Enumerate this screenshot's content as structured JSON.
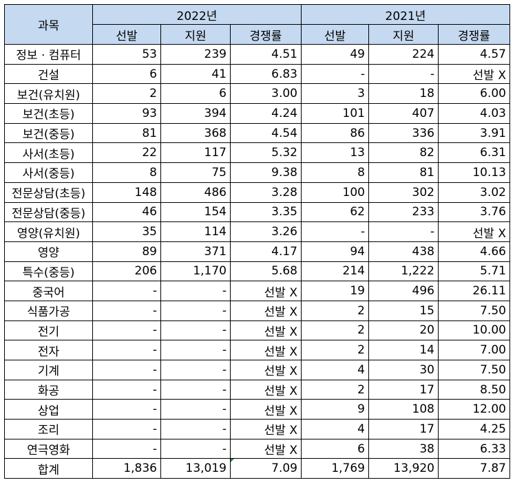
{
  "header": {
    "subject_label": "과목",
    "year_2022": "2022년",
    "year_2021": "2021년",
    "sub_2022": [
      "선발",
      "지원",
      "경쟁률"
    ],
    "sub_2021": [
      "선발",
      "지원",
      "경쟁률"
    ]
  },
  "rows": [
    {
      "subject": "정보 · 컴퓨터",
      "y2022": [
        "53",
        "239",
        "4.51"
      ],
      "y2021": [
        "49",
        "224",
        "4.57"
      ]
    },
    {
      "subject": "건설",
      "y2022": [
        "6",
        "41",
        "6.83"
      ],
      "y2021": [
        "-",
        "-",
        "선발 X"
      ]
    },
    {
      "subject": "보건(유치원)",
      "y2022": [
        "2",
        "6",
        "3.00"
      ],
      "y2021": [
        "3",
        "18",
        "6.00"
      ]
    },
    {
      "subject": "보건(초등)",
      "y2022": [
        "93",
        "394",
        "4.24"
      ],
      "y2021": [
        "101",
        "407",
        "4.03"
      ]
    },
    {
      "subject": "보건(중등)",
      "y2022": [
        "81",
        "368",
        "4.54"
      ],
      "y2021": [
        "86",
        "336",
        "3.91"
      ]
    },
    {
      "subject": "사서(초등)",
      "y2022": [
        "22",
        "117",
        "5.32"
      ],
      "y2021": [
        "13",
        "82",
        "6.31"
      ]
    },
    {
      "subject": "사서(중등)",
      "y2022": [
        "8",
        "75",
        "9.38"
      ],
      "y2021": [
        "8",
        "81",
        "10.13"
      ]
    },
    {
      "subject": "전문상담(초등)",
      "y2022": [
        "148",
        "486",
        "3.28"
      ],
      "y2021": [
        "100",
        "302",
        "3.02"
      ]
    },
    {
      "subject": "전문상담(중등)",
      "y2022": [
        "46",
        "154",
        "3.35"
      ],
      "y2021": [
        "62",
        "233",
        "3.76"
      ]
    },
    {
      "subject": "영양(유치원)",
      "y2022": [
        "35",
        "114",
        "3.26"
      ],
      "y2021": [
        "-",
        "-",
        "선발 X"
      ]
    },
    {
      "subject": "영양",
      "y2022": [
        "89",
        "371",
        "4.17"
      ],
      "y2021": [
        "94",
        "438",
        "4.66"
      ]
    },
    {
      "subject": "특수(중등)",
      "y2022": [
        "206",
        "1,170",
        "5.68"
      ],
      "y2021": [
        "214",
        "1,222",
        "5.71"
      ]
    },
    {
      "subject": "중국어",
      "y2022": [
        "-",
        "-",
        "선발 X"
      ],
      "y2021": [
        "19",
        "496",
        "26.11"
      ]
    },
    {
      "subject": "식품가공",
      "y2022": [
        "-",
        "-",
        "선발 X"
      ],
      "y2021": [
        "2",
        "15",
        "7.50"
      ]
    },
    {
      "subject": "전기",
      "y2022": [
        "-",
        "-",
        "선발 X"
      ],
      "y2021": [
        "2",
        "20",
        "10.00"
      ]
    },
    {
      "subject": "전자",
      "y2022": [
        "-",
        "-",
        "선발 X"
      ],
      "y2021": [
        "2",
        "14",
        "7.00"
      ]
    },
    {
      "subject": "기계",
      "y2022": [
        "-",
        "-",
        "선발 X"
      ],
      "y2021": [
        "4",
        "30",
        "7.50"
      ]
    },
    {
      "subject": "화공",
      "y2022": [
        "-",
        "-",
        "선발 X"
      ],
      "y2021": [
        "2",
        "17",
        "8.50"
      ]
    },
    {
      "subject": "상업",
      "y2022": [
        "-",
        "-",
        "선발 X"
      ],
      "y2021": [
        "9",
        "108",
        "12.00"
      ]
    },
    {
      "subject": "조리",
      "y2022": [
        "-",
        "-",
        "선발 X"
      ],
      "y2021": [
        "4",
        "17",
        "4.25"
      ]
    },
    {
      "subject": "연극영화",
      "y2022": [
        "-",
        "-",
        "선발 X"
      ],
      "y2021": [
        "6",
        "38",
        "6.33"
      ]
    },
    {
      "subject": "합계",
      "y2022": [
        "1,836",
        "13,019",
        "7.09"
      ],
      "y2021": [
        "1,769",
        "13,920",
        "7.87"
      ]
    }
  ]
}
